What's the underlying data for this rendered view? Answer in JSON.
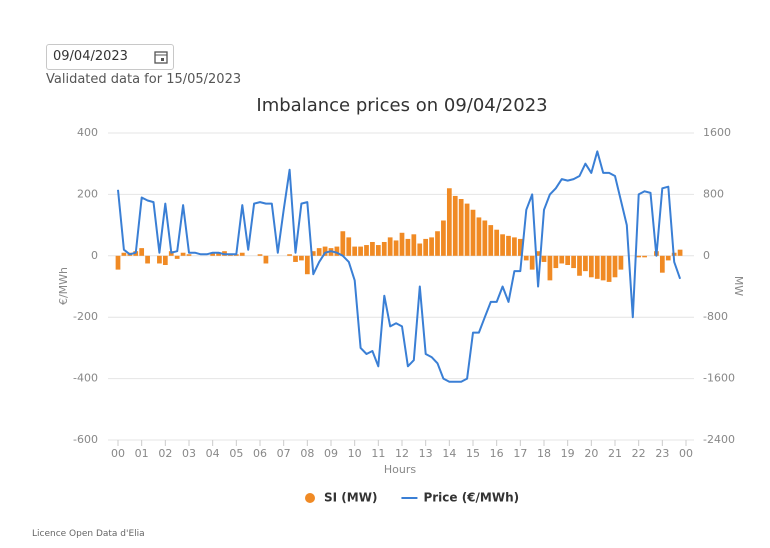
{
  "header": {
    "date": "09/04/2023",
    "subtitle": "Validated data for 15/05/2023"
  },
  "footer": {
    "licence": "Licence Open Data d'Elia"
  },
  "chart_data": {
    "type": "bar-line",
    "title": "Imbalance prices on 09/04/2023",
    "x_label": "Hours",
    "y_label": "€/MWh",
    "y2_label": "MW",
    "xlim": [
      0,
      24
    ],
    "xticks": [
      {
        "value": 0,
        "label": "00"
      },
      {
        "value": 1,
        "label": "01"
      },
      {
        "value": 2,
        "label": "02"
      },
      {
        "value": 3,
        "label": "03"
      },
      {
        "value": 4,
        "label": "04"
      },
      {
        "value": 5,
        "label": "05"
      },
      {
        "value": 6,
        "label": "06"
      },
      {
        "value": 7,
        "label": "07"
      },
      {
        "value": 8,
        "label": "08"
      },
      {
        "value": 9,
        "label": "09"
      },
      {
        "value": 10,
        "label": "10"
      },
      {
        "value": 11,
        "label": "11"
      },
      {
        "value": 12,
        "label": "12"
      },
      {
        "value": 13,
        "label": "13"
      },
      {
        "value": 14,
        "label": "14"
      },
      {
        "value": 15,
        "label": "15"
      },
      {
        "value": 16,
        "label": "16"
      },
      {
        "value": 17,
        "label": "17"
      },
      {
        "value": 18,
        "label": "18"
      },
      {
        "value": 19,
        "label": "19"
      },
      {
        "value": 20,
        "label": "20"
      },
      {
        "value": 21,
        "label": "21"
      },
      {
        "value": 22,
        "label": "22"
      },
      {
        "value": 23,
        "label": "23"
      },
      {
        "value": 24,
        "label": "00"
      }
    ],
    "ylim": [
      -600,
      400
    ],
    "yticks": [
      -600,
      -400,
      -200,
      0,
      200,
      400
    ],
    "y2lim": [
      -2400,
      1600
    ],
    "y2ticks": [
      -2400,
      -1600,
      -800,
      0,
      800,
      1600
    ],
    "grid": true,
    "x": [
      0,
      0.25,
      0.5,
      0.75,
      1,
      1.25,
      1.5,
      1.75,
      2,
      2.25,
      2.5,
      2.75,
      3,
      3.25,
      3.5,
      3.75,
      4,
      4.25,
      4.5,
      4.75,
      5,
      5.25,
      5.5,
      5.75,
      6,
      6.25,
      6.5,
      6.75,
      7,
      7.25,
      7.5,
      7.75,
      8,
      8.25,
      8.5,
      8.75,
      9,
      9.25,
      9.5,
      9.75,
      10,
      10.25,
      10.5,
      10.75,
      11,
      11.25,
      11.5,
      11.75,
      12,
      12.25,
      12.5,
      12.75,
      13,
      13.25,
      13.5,
      13.75,
      14,
      14.25,
      14.5,
      14.75,
      15,
      15.25,
      15.5,
      15.75,
      16,
      16.25,
      16.5,
      16.75,
      17,
      17.25,
      17.5,
      17.75,
      18,
      18.25,
      18.5,
      18.75,
      19,
      19.25,
      19.5,
      19.75,
      20,
      20.25,
      20.5,
      20.75,
      21,
      21.25,
      21.5,
      21.75,
      22,
      22.25,
      22.5,
      22.75,
      23,
      23.25,
      23.5,
      23.75
    ],
    "series": [
      {
        "name": "SI (MW)",
        "type": "bar",
        "axis": "y2",
        "color": "#f08a24",
        "values": [
          -180,
          40,
          40,
          60,
          100,
          -100,
          0,
          -100,
          -120,
          60,
          -40,
          40,
          20,
          0,
          0,
          0,
          40,
          40,
          60,
          20,
          20,
          40,
          0,
          0,
          20,
          -100,
          0,
          0,
          0,
          20,
          -80,
          -60,
          -240,
          60,
          100,
          120,
          100,
          120,
          320,
          240,
          120,
          120,
          140,
          180,
          140,
          180,
          240,
          200,
          300,
          220,
          280,
          160,
          220,
          240,
          320,
          460,
          880,
          780,
          740,
          680,
          600,
          500,
          460,
          400,
          340,
          280,
          260,
          240,
          220,
          -60,
          -180,
          60,
          -80,
          -320,
          -160,
          -100,
          -120,
          -160,
          -260,
          -200,
          -280,
          -300,
          -320,
          -340,
          -280,
          -180,
          0,
          0,
          -20,
          -20,
          0,
          60,
          -220,
          -60,
          40,
          80
        ]
      },
      {
        "name": "Price (€/MWh)",
        "type": "line",
        "axis": "y",
        "color": "#3a7fd5",
        "values": [
          215,
          20,
          5,
          10,
          190,
          180,
          175,
          10,
          170,
          10,
          15,
          165,
          10,
          10,
          5,
          5,
          10,
          10,
          5,
          5,
          5,
          165,
          20,
          170,
          175,
          170,
          170,
          10,
          150,
          280,
          10,
          170,
          175,
          -60,
          -20,
          10,
          15,
          10,
          0,
          -20,
          -80,
          -300,
          -320,
          -310,
          -360,
          -130,
          -230,
          -220,
          -230,
          -360,
          -340,
          -100,
          -320,
          -330,
          -350,
          -400,
          -410,
          -410,
          -410,
          -400,
          -250,
          -250,
          -200,
          -150,
          -150,
          -100,
          -150,
          -50,
          -50,
          150,
          200,
          -100,
          150,
          200,
          220,
          250,
          245,
          250,
          260,
          300,
          270,
          340,
          270,
          270,
          260,
          180,
          100,
          -200,
          200,
          210,
          205,
          0,
          220,
          225,
          -20,
          -75
        ]
      }
    ]
  }
}
